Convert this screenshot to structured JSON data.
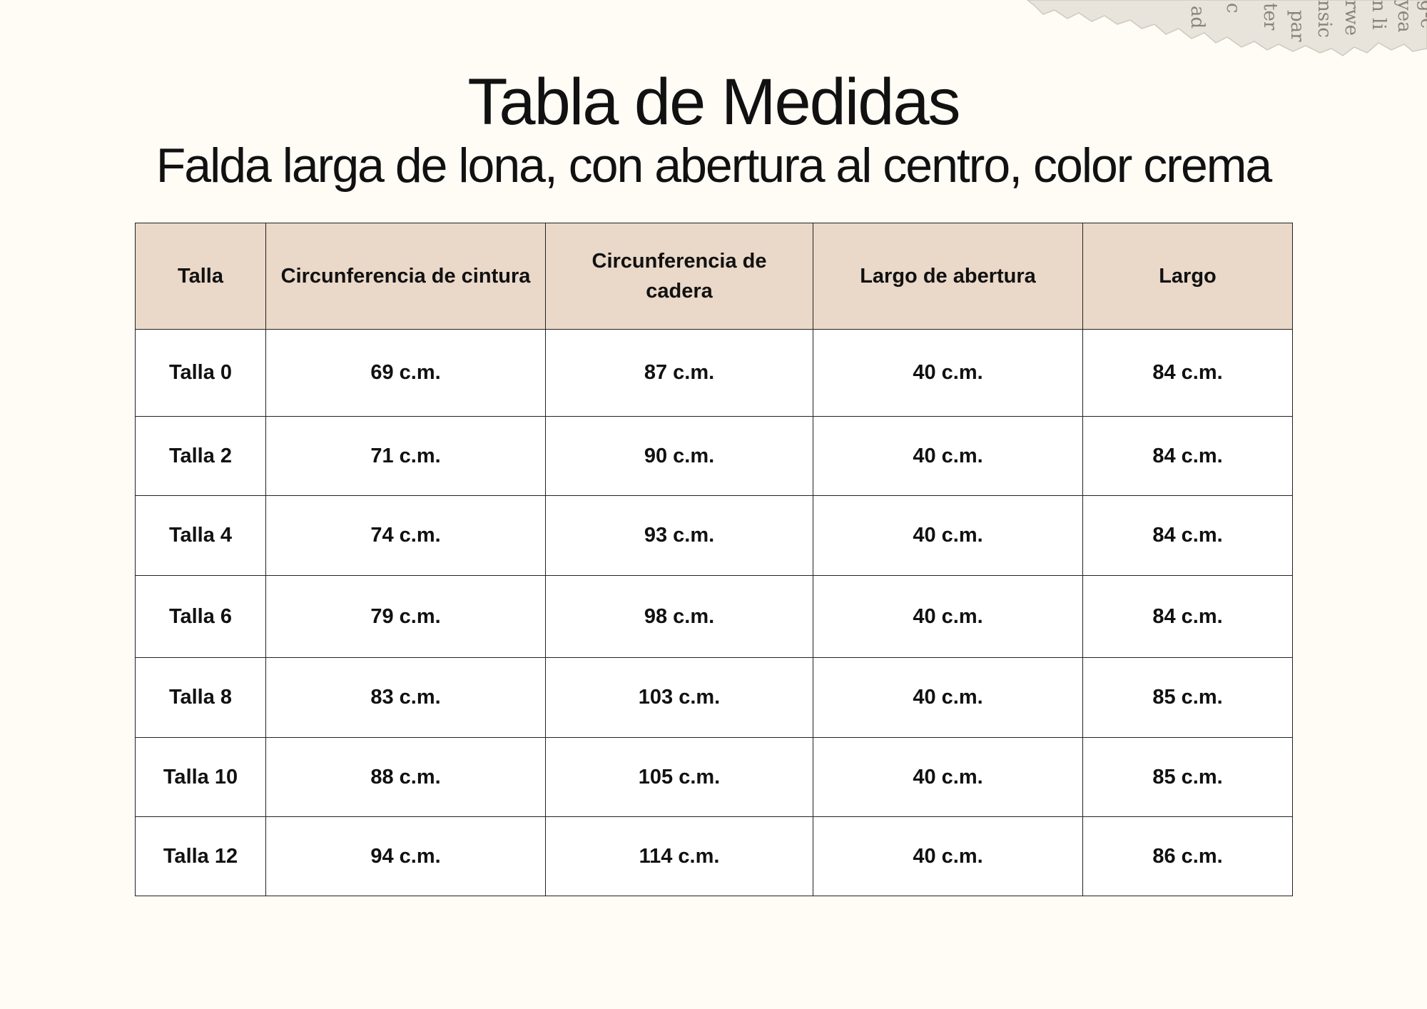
{
  "title": "Tabla de Medidas",
  "subtitle": "Falda larga de lona, con abertura al centro, color crema",
  "table": {
    "header_bg": "#ead8c8",
    "headers": [
      "Talla",
      "Circunferencia  de cintura",
      "Circunferencia de cadera",
      "Largo de abertura",
      "Largo"
    ],
    "rows": [
      [
        "Talla 0",
        "69 c.m.",
        "87 c.m.",
        "40 c.m.",
        "84 c.m."
      ],
      [
        "Talla 2",
        "71 c.m.",
        "90 c.m.",
        "40 c.m.",
        "84 c.m."
      ],
      [
        "Talla 4",
        "74 c.m.",
        "93 c.m.",
        "40 c.m.",
        "84 c.m."
      ],
      [
        "Talla 6",
        "79 c.m.",
        "98 c.m.",
        "40 c.m.",
        "84 c.m."
      ],
      [
        "Talla 8",
        "83 c.m.",
        "103 c.m.",
        "40 c.m.",
        "85 c.m."
      ],
      [
        "Talla 10",
        "88 c.m.",
        "105 c.m.",
        "40 c.m.",
        "85 c.m."
      ],
      [
        "Talla 12",
        "94 c.m.",
        "114 c.m.",
        "40 c.m.",
        "86 c.m."
      ]
    ]
  }
}
